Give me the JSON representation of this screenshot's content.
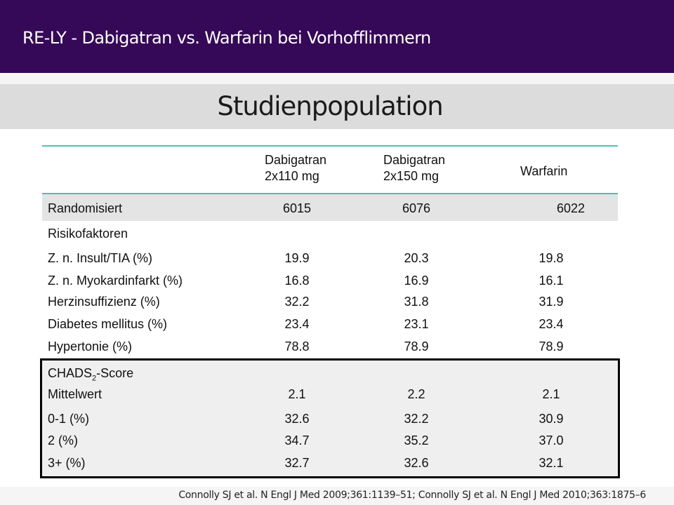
{
  "header": {
    "title": "RE-LY - Dabigatran vs. Warfarin bei Vorhofflimmern"
  },
  "subtitle": "Studienpopulation",
  "table": {
    "columns": [
      {
        "line1": "Dabigatran",
        "line2": "2x110 mg"
      },
      {
        "line1": "Dabigatran",
        "line2": "2x150 mg"
      },
      {
        "line1": "Warfarin",
        "line2": ""
      }
    ],
    "randomized": {
      "label": "Randomisiert",
      "values": [
        "6015",
        "6076",
        "6022"
      ]
    },
    "risk_section": {
      "title": "Risikofaktoren",
      "rows": [
        {
          "label": "Z. n. Insult/TIA (%)",
          "values": [
            "19.9",
            "20.3",
            "19.8"
          ]
        },
        {
          "label": "Z. n. Myokardinfarkt (%)",
          "values": [
            "16.8",
            "16.9",
            "16.1"
          ]
        },
        {
          "label": "Herzinsuffizienz (%)",
          "values": [
            "32.2",
            "31.8",
            "31.9"
          ]
        },
        {
          "label": "Diabetes mellitus (%)",
          "values": [
            "23.4",
            "23.1",
            "23.4"
          ]
        },
        {
          "label": "Hypertonie (%)",
          "values": [
            "78.8",
            "78.9",
            "78.9"
          ]
        }
      ]
    },
    "chads_section": {
      "title_prefix": "CHADS",
      "title_sub": "2",
      "title_suffix": "-Score",
      "rows": [
        {
          "label": "Mittelwert",
          "values": [
            "2.1",
            "2.2",
            "2.1"
          ]
        },
        {
          "label": "0-1 (%)",
          "values": [
            "32.6",
            "32.2",
            "30.9"
          ]
        },
        {
          "label": "2 (%)",
          "values": [
            "34.7",
            "35.2",
            "37.0"
          ]
        },
        {
          "label": "3+ (%)",
          "values": [
            "32.7",
            "32.6",
            "32.1"
          ]
        }
      ]
    }
  },
  "footer": {
    "citation": "Connolly SJ et al. N Engl J Med 2009;361:1139–51; Connolly SJ et al. N Engl J Med 2010;363:1875–6"
  },
  "colors": {
    "header_bg": "#350957",
    "accent_line": "#4bc4a8"
  }
}
